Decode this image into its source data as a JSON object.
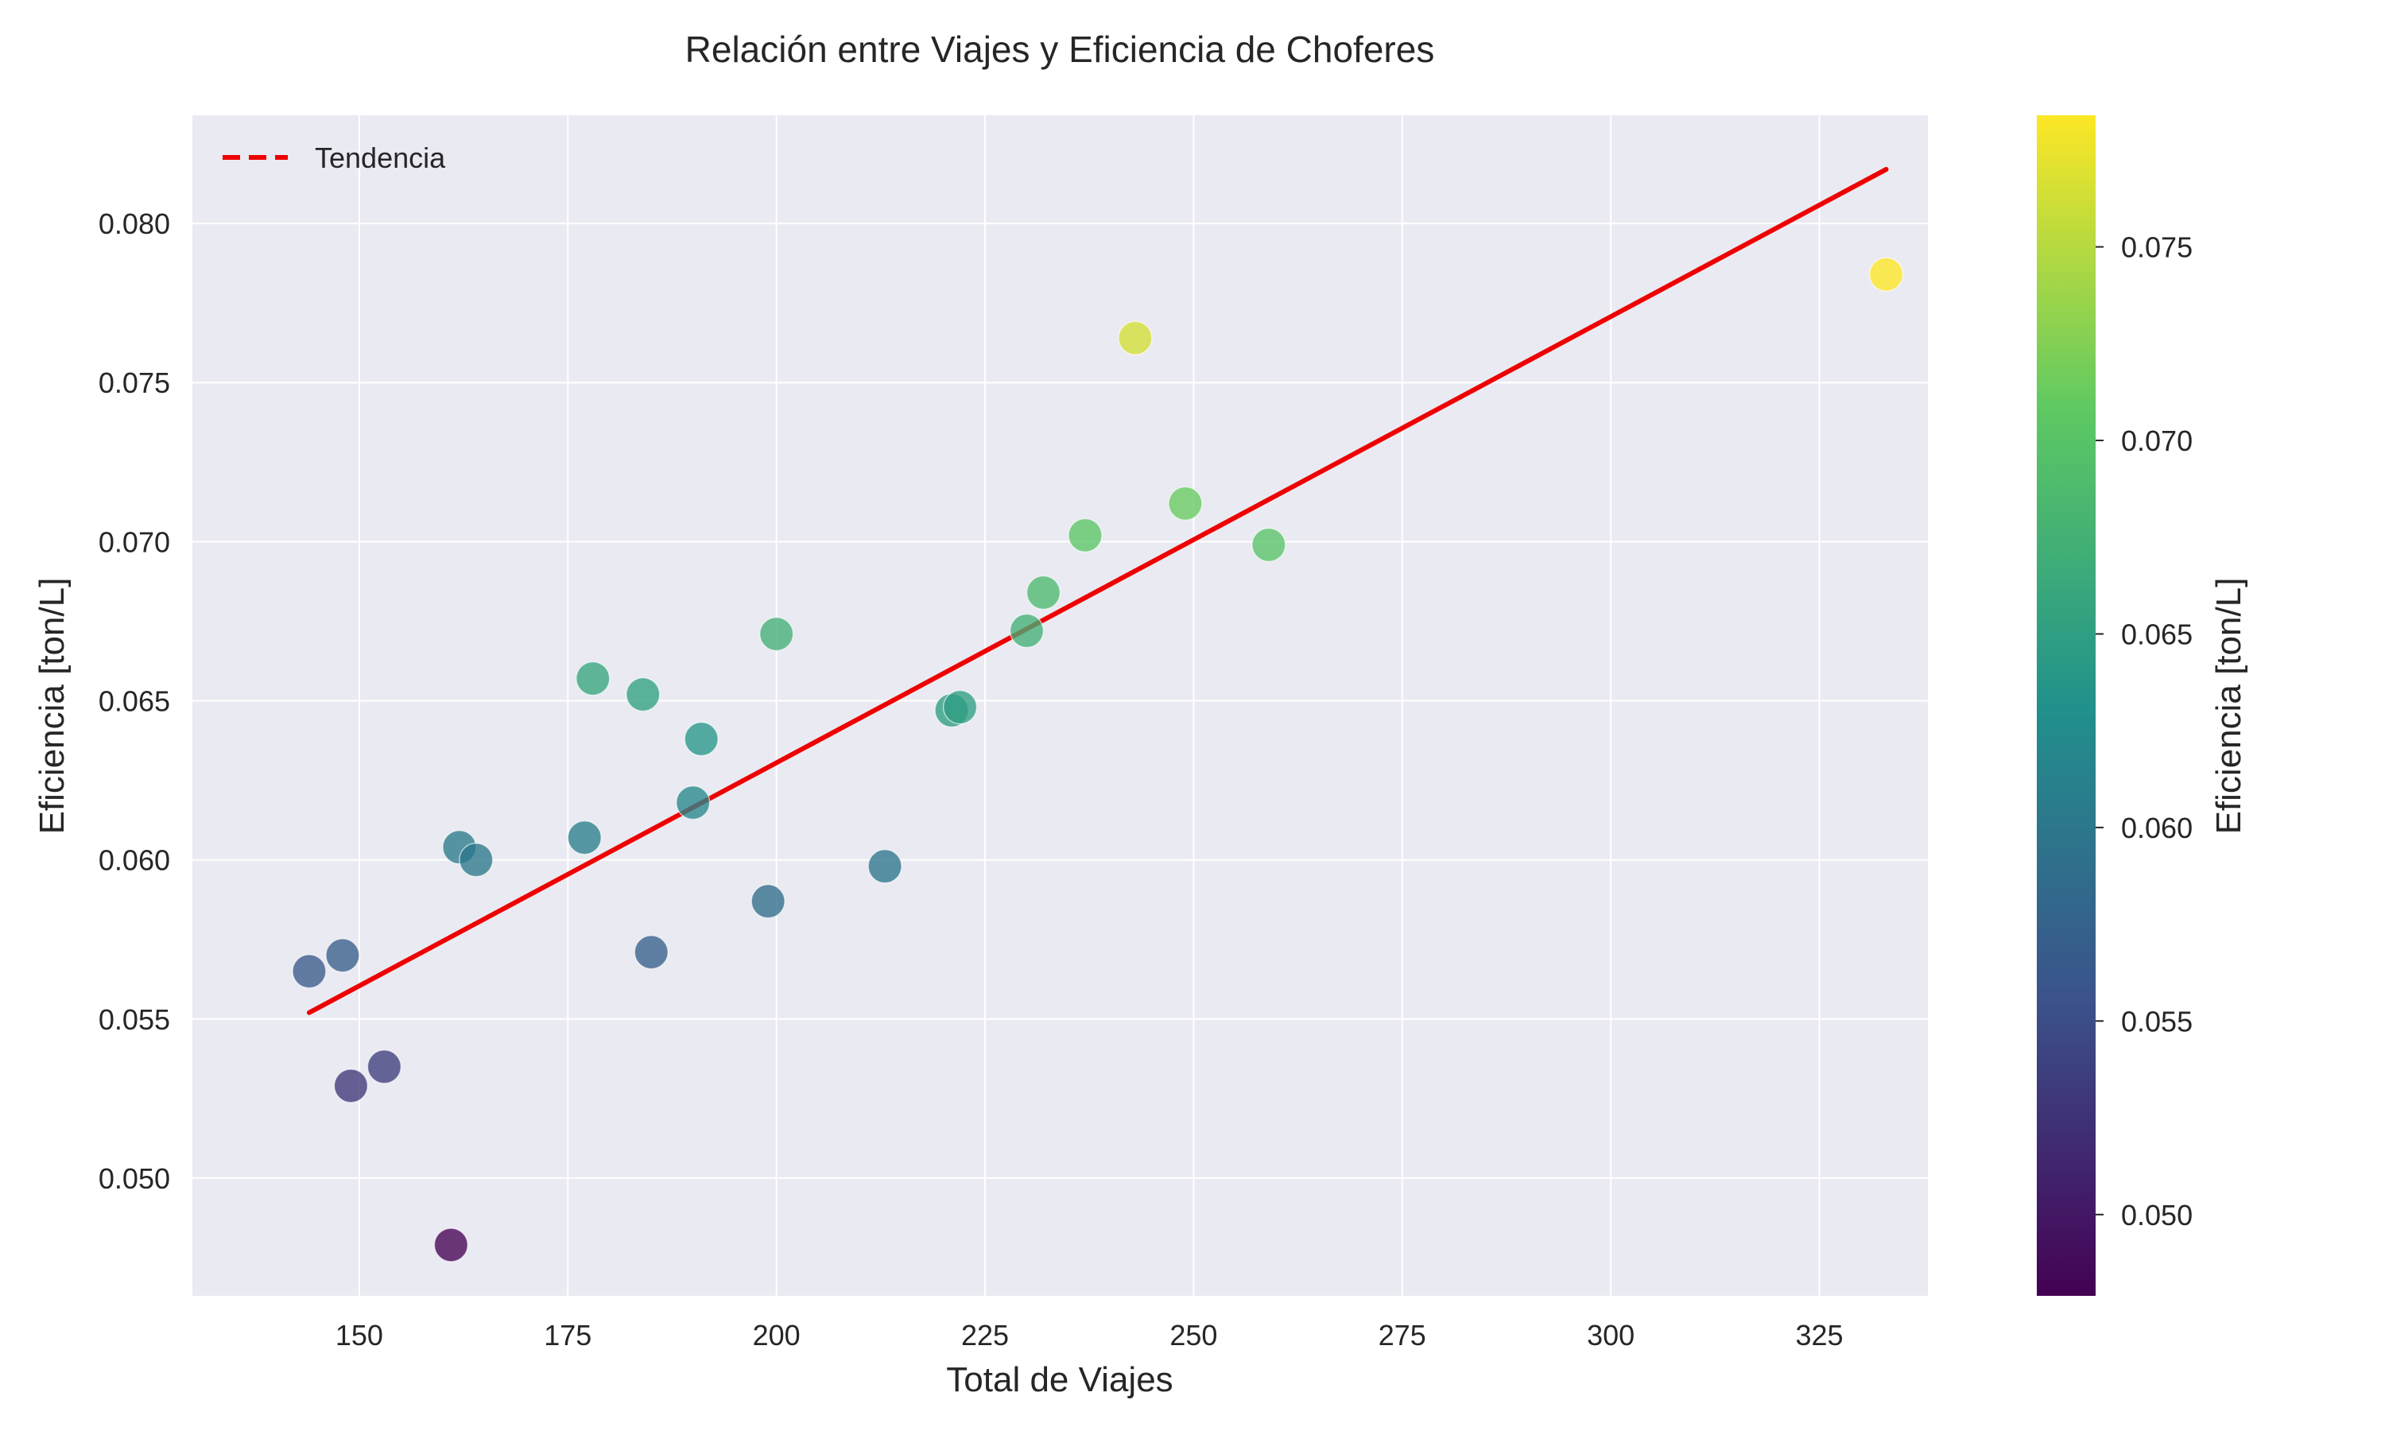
{
  "chart_data": {
    "type": "scatter",
    "title": "Relación entre Viajes y Eficiencia de Choferes",
    "xlabel": "Total de Viajes",
    "ylabel": "Eficiencia [ton/L]",
    "xlim": [
      130,
      338
    ],
    "ylim": [
      0.0463,
      0.0834
    ],
    "xticks": [
      150,
      175,
      200,
      225,
      250,
      275,
      300,
      325
    ],
    "yticks": [
      0.05,
      0.055,
      0.06,
      0.065,
      0.07,
      0.075,
      0.08
    ],
    "grid": true,
    "colormap": "viridis",
    "colorbar": {
      "label": "Eficiencia [ton/L]",
      "range": [
        0.0479,
        0.0784
      ],
      "ticks": [
        0.05,
        0.055,
        0.06,
        0.065,
        0.07,
        0.075
      ]
    },
    "legend": {
      "position": "top-left",
      "entries": [
        "Tendencia"
      ]
    },
    "trend": {
      "label": "Tendencia",
      "color": "#ee0000",
      "x": [
        144,
        333
      ],
      "y": [
        0.0552,
        0.0817
      ]
    },
    "points": [
      {
        "x": 144,
        "y": 0.0565
      },
      {
        "x": 148,
        "y": 0.057
      },
      {
        "x": 149,
        "y": 0.0529
      },
      {
        "x": 153,
        "y": 0.0535
      },
      {
        "x": 161,
        "y": 0.0479
      },
      {
        "x": 162,
        "y": 0.0604
      },
      {
        "x": 164,
        "y": 0.06
      },
      {
        "x": 177,
        "y": 0.0607
      },
      {
        "x": 178,
        "y": 0.0657
      },
      {
        "x": 184,
        "y": 0.0652
      },
      {
        "x": 185,
        "y": 0.0571
      },
      {
        "x": 190,
        "y": 0.0618
      },
      {
        "x": 191,
        "y": 0.0638
      },
      {
        "x": 199,
        "y": 0.0587
      },
      {
        "x": 200,
        "y": 0.0671
      },
      {
        "x": 213,
        "y": 0.0598
      },
      {
        "x": 221,
        "y": 0.0647
      },
      {
        "x": 222,
        "y": 0.0648
      },
      {
        "x": 230,
        "y": 0.0672
      },
      {
        "x": 232,
        "y": 0.0684
      },
      {
        "x": 237,
        "y": 0.0702
      },
      {
        "x": 243,
        "y": 0.0764
      },
      {
        "x": 249,
        "y": 0.0712
      },
      {
        "x": 259,
        "y": 0.0699
      },
      {
        "x": 333,
        "y": 0.0784
      }
    ]
  }
}
